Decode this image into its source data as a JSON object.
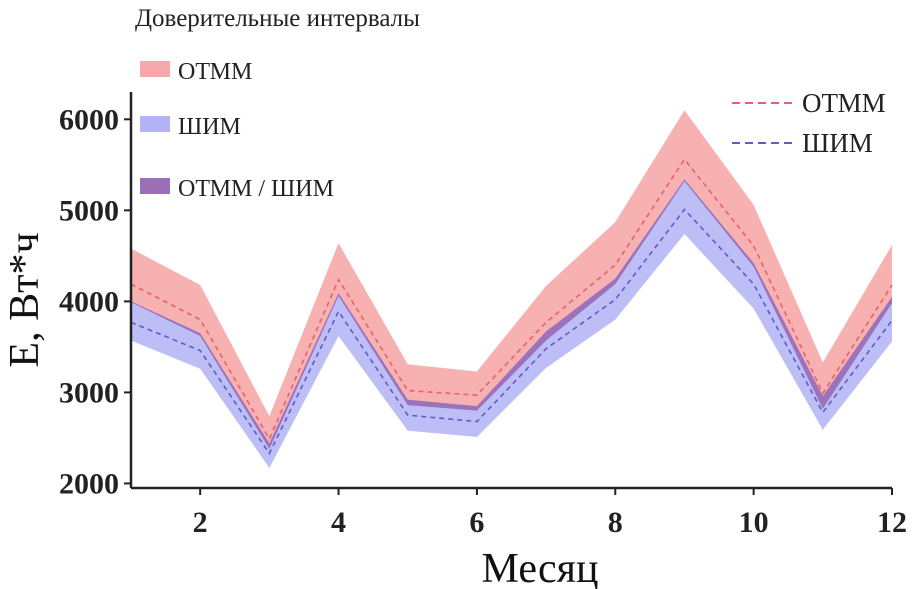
{
  "chart_data": {
    "type": "area",
    "xlabel": "Месяц",
    "ylabel": "E, Вт*ч",
    "xlim": [
      1,
      12
    ],
    "ylim": [
      1950,
      6300
    ],
    "x": [
      1,
      2,
      3,
      4,
      5,
      6,
      7,
      8,
      9,
      10,
      11,
      12
    ],
    "xticks": [
      2,
      4,
      6,
      8,
      10,
      12
    ],
    "yticks": [
      2000,
      3000,
      4000,
      5000,
      6000
    ],
    "grid": false,
    "bands_legend": {
      "title": "Доверительные интервалы",
      "placement": "top-left",
      "items": [
        {
          "label": "ОТММ",
          "color": "#f7a9a9"
        },
        {
          "label": "ШИМ",
          "color": "#b3b3f5"
        },
        {
          "label": "ОТММ / ШИМ",
          "color": "#9a6fb8"
        }
      ]
    },
    "lines_legend": {
      "placement": "top-right",
      "items": [
        {
          "label": "ОТММ",
          "color": "#e8616a",
          "dash": true
        },
        {
          "label": "ШИМ",
          "color": "#5c5ccc",
          "dash": true
        }
      ]
    },
    "series": [
      {
        "name": "ОТММ",
        "line_color": "#e8616a",
        "band_color": "#f7a9a9",
        "mean": [
          4190,
          3800,
          2490,
          4240,
          3020,
          2970,
          3770,
          4400,
          5560,
          4610,
          2990,
          4180
        ],
        "upper": [
          4580,
          4180,
          2740,
          4640,
          3310,
          3230,
          4170,
          4870,
          6100,
          5060,
          3330,
          4620
        ],
        "lower": [
          3990,
          3620,
          2380,
          4060,
          2860,
          2800,
          3570,
          4190,
          5320,
          4380,
          2820,
          3980
        ]
      },
      {
        "name": "ШИМ",
        "line_color": "#5c5ccc",
        "band_color": "#b3b3f5",
        "mean": [
          3770,
          3460,
          2330,
          3890,
          2750,
          2680,
          3480,
          4020,
          5010,
          4190,
          2780,
          3790
        ],
        "upper": [
          4000,
          3650,
          2440,
          4090,
          2920,
          2850,
          3670,
          4250,
          5340,
          4420,
          2960,
          4050
        ],
        "lower": [
          3570,
          3260,
          2170,
          3620,
          2580,
          2510,
          3270,
          3800,
          4740,
          3920,
          2590,
          3560
        ]
      }
    ]
  }
}
